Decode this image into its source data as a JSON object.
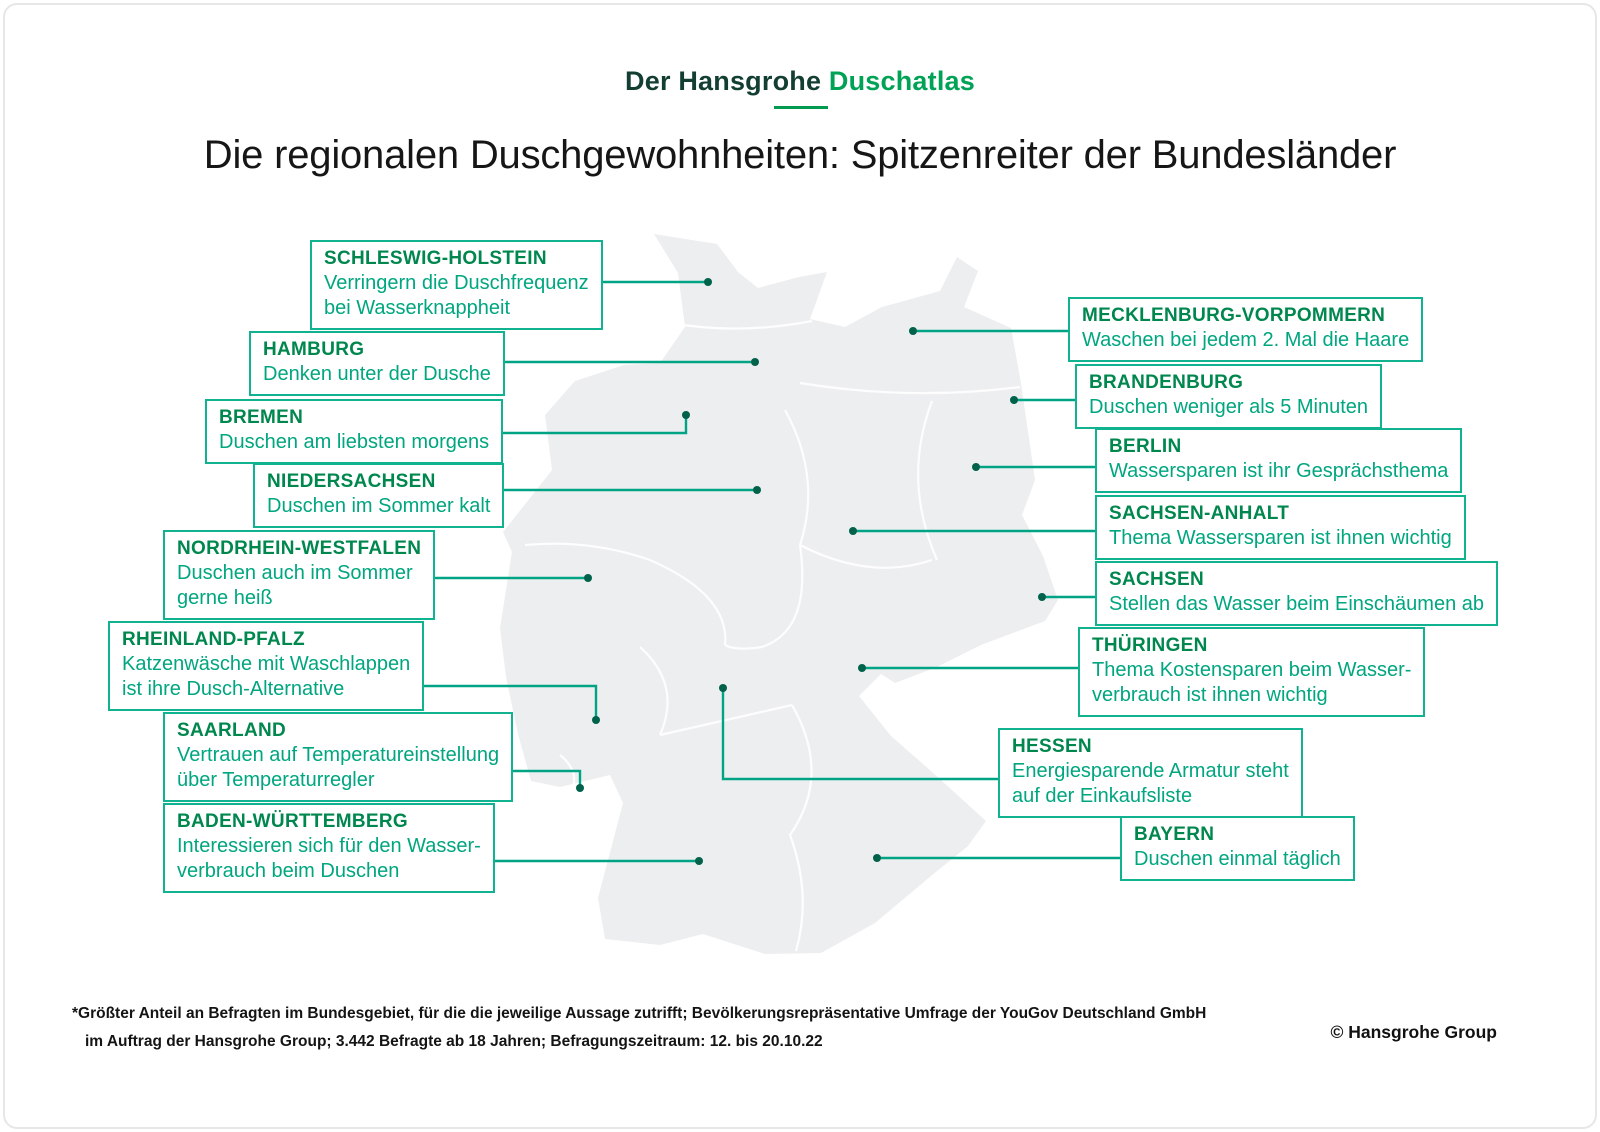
{
  "header": {
    "logo_prefix": "Der Hansgrohe",
    "logo_suffix": "Duschatlas",
    "title": "Die regionalen Duschgewohnheiten: Spitzenreiter der Bundesländer"
  },
  "footer": {
    "footnote_line1": "*Größter Anteil an Befragten im Bundesgebiet, für die die jeweilige Aussage zutrifft; Bevölkerungsrepräsentative Umfrage der YouGov Deutschland GmbH",
    "footnote_line2": "im Auftrag der Hansgrohe Group; 3.442 Befragte ab 18 Jahren; Befragungszeitraum: 12. bis 20.10.22",
    "copyright": "© Hansgrohe Group"
  },
  "colors": {
    "callout_border": "#10b290",
    "connector_line": "#00a383",
    "state_name": "#00874e",
    "state_text": "#00a67f",
    "logo_dark": "#123f31",
    "logo_green": "#00a255",
    "map_fill": "#edeef0",
    "marker_dot": "#00624a"
  },
  "states": [
    {
      "id": "schleswig-holstein",
      "name": "SCHLESWIG-HOLSTEIN",
      "lines": [
        "Verringern die Duschfrequenz",
        "bei Wasserknappheit"
      ]
    },
    {
      "id": "hamburg",
      "name": "HAMBURG",
      "lines": [
        "Denken unter der Dusche"
      ]
    },
    {
      "id": "bremen",
      "name": "BREMEN",
      "lines": [
        "Duschen am liebsten morgens"
      ]
    },
    {
      "id": "niedersachsen",
      "name": "NIEDERSACHSEN",
      "lines": [
        "Duschen im Sommer kalt"
      ]
    },
    {
      "id": "nordrhein-westfalen",
      "name": "NORDRHEIN-WESTFALEN",
      "lines": [
        "Duschen auch im Sommer",
        "gerne heiß"
      ]
    },
    {
      "id": "rheinland-pfalz",
      "name": "RHEINLAND-PFALZ",
      "lines": [
        "Katzenwäsche mit Waschlappen",
        "ist ihre Dusch-Alternative"
      ]
    },
    {
      "id": "saarland",
      "name": "SAARLAND",
      "lines": [
        "Vertrauen auf Temperatureinstellung",
        "über Temperaturregler"
      ]
    },
    {
      "id": "baden-wuerttemberg",
      "name": "BADEN-WÜRTTEMBERG",
      "lines": [
        "Interessieren sich für den Wasser-",
        "verbrauch beim Duschen"
      ]
    },
    {
      "id": "mecklenburg-vorpommern",
      "name": "MECKLENBURG-VORPOMMERN",
      "lines": [
        "Waschen bei jedem 2. Mal die Haare"
      ]
    },
    {
      "id": "brandenburg",
      "name": "BRANDENBURG",
      "lines": [
        "Duschen weniger als 5 Minuten"
      ]
    },
    {
      "id": "berlin",
      "name": "BERLIN",
      "lines": [
        "Wassersparen ist ihr Gesprächsthema"
      ]
    },
    {
      "id": "sachsen-anhalt",
      "name": "SACHSEN-ANHALT",
      "lines": [
        "Thema Wassersparen ist ihnen wichtig"
      ]
    },
    {
      "id": "sachsen",
      "name": "SACHSEN",
      "lines": [
        "Stellen das Wasser beim Einschäumen ab"
      ]
    },
    {
      "id": "thueringen",
      "name": "THÜRINGEN",
      "lines": [
        "Thema Kostensparen beim Wasser-",
        "verbrauch ist ihnen wichtig"
      ]
    },
    {
      "id": "hessen",
      "name": "HESSEN",
      "lines": [
        "Energiesparende Armatur steht",
        "auf der Einkaufsliste"
      ]
    },
    {
      "id": "bayern",
      "name": "BAYERN",
      "lines": [
        "Duschen einmal täglich"
      ]
    }
  ]
}
